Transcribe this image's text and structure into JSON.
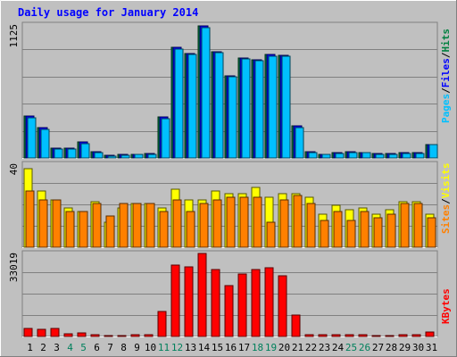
{
  "chart_data": [
    {
      "type": "bar",
      "title": "Daily usage for January 2014",
      "ylabel_parts": [
        "Pages",
        "Files",
        "Hits"
      ],
      "ymax_label": "1125",
      "ylim": [
        0,
        1125
      ],
      "categories": [
        "1",
        "2",
        "3",
        "4",
        "5",
        "6",
        "7",
        "8",
        "9",
        "10",
        "11",
        "12",
        "13",
        "14",
        "15",
        "16",
        "17",
        "18",
        "19",
        "20",
        "21",
        "22",
        "23",
        "24",
        "25",
        "26",
        "27",
        "28",
        "29",
        "30",
        "31"
      ],
      "series": [
        {
          "name": "Hits",
          "color": "#008040",
          "values": [
            352,
            255,
            80,
            80,
            133,
            53,
            21,
            27,
            32,
            37,
            344,
            934,
            887,
            1115,
            902,
            696,
            846,
            834,
            873,
            867,
            271,
            53,
            32,
            43,
            53,
            48,
            37,
            37,
            43,
            43,
            117
          ]
        },
        {
          "name": "Files",
          "color": "#0000ff",
          "values": [
            352,
            255,
            80,
            80,
            133,
            53,
            21,
            27,
            32,
            37,
            344,
            934,
            887,
            1115,
            902,
            696,
            846,
            834,
            873,
            867,
            271,
            53,
            32,
            43,
            53,
            48,
            37,
            37,
            43,
            43,
            117
          ]
        },
        {
          "name": "Pages",
          "color": "#00c0ff",
          "values": [
            342,
            245,
            75,
            75,
            122,
            48,
            16,
            21,
            27,
            32,
            334,
            924,
            876,
            1105,
            892,
            685,
            836,
            823,
            862,
            857,
            260,
            43,
            27,
            37,
            48,
            43,
            32,
            32,
            37,
            37,
            112
          ]
        }
      ]
    },
    {
      "type": "bar",
      "ylabel_parts": [
        "Sites",
        "Visits"
      ],
      "ymax_label": "40",
      "ylim": [
        0,
        40
      ],
      "categories": [
        "1",
        "2",
        "3",
        "4",
        "5",
        "6",
        "7",
        "8",
        "9",
        "10",
        "11",
        "12",
        "13",
        "14",
        "15",
        "16",
        "17",
        "18",
        "19",
        "20",
        "21",
        "22",
        "23",
        "24",
        "25",
        "26",
        "27",
        "28",
        "29",
        "30",
        "31"
      ],
      "series": [
        {
          "name": "Visits",
          "color": "#ffff00",
          "values": [
            38,
            27,
            23,
            19,
            17,
            22,
            12,
            19,
            21,
            21,
            19,
            28,
            23,
            23,
            27,
            26,
            26,
            29,
            24,
            26,
            26,
            24,
            16,
            20,
            18,
            19,
            16,
            18,
            22,
            22,
            16
          ]
        },
        {
          "name": "Sites",
          "color": "#ff8000",
          "values": [
            27,
            23,
            23,
            17,
            17,
            21,
            15,
            21,
            21,
            21,
            17,
            23,
            17,
            21,
            23,
            24,
            24,
            24,
            12,
            23,
            25,
            21,
            13,
            17,
            13,
            17,
            14,
            16,
            21,
            21,
            14
          ]
        }
      ]
    },
    {
      "type": "bar",
      "ylabel_parts": [
        "KBytes"
      ],
      "ymax_label": "33019",
      "ylim": [
        0,
        33019
      ],
      "categories": [
        "1",
        "2",
        "3",
        "4",
        "5",
        "6",
        "7",
        "8",
        "9",
        "10",
        "11",
        "12",
        "13",
        "14",
        "15",
        "16",
        "17",
        "18",
        "19",
        "20",
        "21",
        "22",
        "23",
        "24",
        "25",
        "26",
        "27",
        "28",
        "29",
        "30",
        "31"
      ],
      "series": [
        {
          "name": "KBytes",
          "color": "#ff0000",
          "values": [
            3200,
            3000,
            3200,
            1000,
            1400,
            700,
            500,
            500,
            600,
            700,
            10000,
            28300,
            27700,
            32900,
            26800,
            20400,
            24700,
            26500,
            27200,
            24100,
            8400,
            800,
            800,
            800,
            800,
            700,
            500,
            500,
            600,
            700,
            1600
          ]
        }
      ]
    }
  ],
  "weekend_days": [
    "4",
    "5",
    "11",
    "12",
    "18",
    "19",
    "25",
    "26"
  ],
  "colors": {
    "background": "#c0c0c0",
    "title": "#0000ff",
    "day_label": "#000000",
    "weekend_label": "#00805c",
    "grid": "#808080",
    "axis_text": "#000000"
  }
}
